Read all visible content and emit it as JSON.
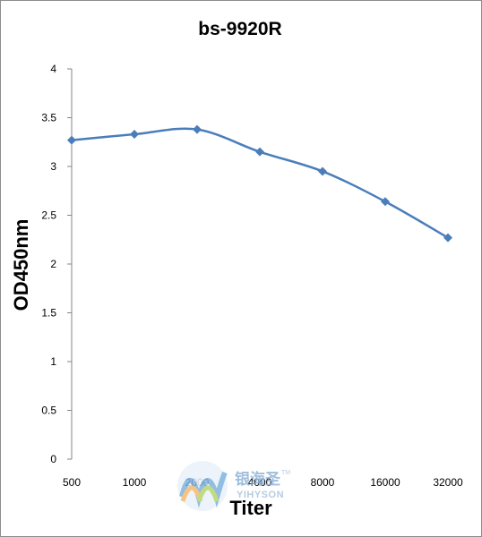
{
  "chart_data": {
    "type": "line",
    "title": "bs-9920R",
    "xlabel": "Titer",
    "ylabel": "OD450nm",
    "categories": [
      "500",
      "1000",
      "2000",
      "4000",
      "8000",
      "16000",
      "32000"
    ],
    "series": [
      {
        "values": [
          3.27,
          3.33,
          3.38,
          3.15,
          2.95,
          2.64,
          2.27
        ]
      }
    ],
    "ylim": [
      0,
      4
    ],
    "yticks": [
      "0",
      "0.5",
      "1",
      "1.5",
      "2",
      "2.5",
      "3",
      "3.5",
      "4"
    ],
    "grid": false,
    "legend": "none",
    "line_color": "#4a7ebb",
    "axis_color": "#868686"
  },
  "watermark": {
    "text_cn": "银海圣",
    "text_en": "YIHYSON",
    "tm": "TM"
  }
}
